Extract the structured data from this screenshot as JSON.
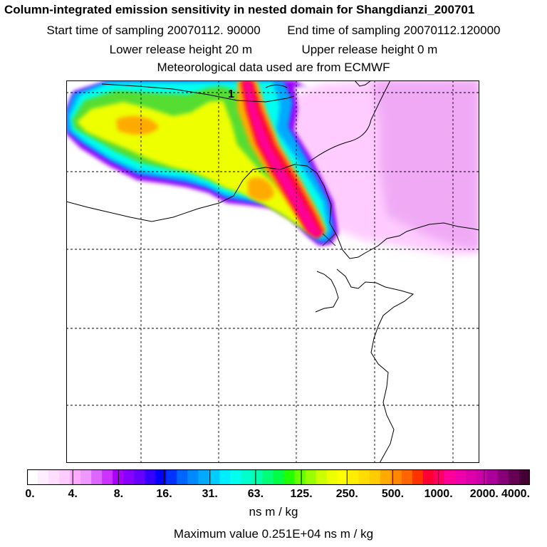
{
  "header": {
    "title": "Column-integrated emission sensitivity in nested domain for Shangdianzi_200701",
    "start_label": "Start time of sampling 20070112. 90000",
    "end_label": "End time of sampling 20070112.120000",
    "lower_label": "Lower release height   20 m",
    "upper_label": "Upper release height    0 m",
    "met_label": "Meteorological data used are from ECMWF"
  },
  "map": {
    "marker_label": "1",
    "plume_colors": {
      "outer": "#9900ff",
      "blue": "#00aaff",
      "cyan": "#00ffee",
      "green": "#55dd33",
      "yellow": "#eeff00",
      "orange": "#ffaa00",
      "red": "#ff1133",
      "magenta": "#ff0099",
      "pale": "#ffccff",
      "light_pink": "#f0aaf5"
    }
  },
  "colorbar": {
    "tick_labels": [
      "0.",
      "4.",
      "8.",
      "16.",
      "31.",
      "63.",
      "125.",
      "250.",
      "500.",
      "1000.",
      "2000.",
      "4000."
    ],
    "colors": [
      "#ffffff",
      "#ffeeff",
      "#ffddff",
      "#ffccff",
      "#ffaaff",
      "#ee99ff",
      "#dd66ff",
      "#cc33ff",
      "#aa00ff",
      "#8800ff",
      "#6600ff",
      "#3300ff",
      "#0000ff",
      "#0033ff",
      "#0066ff",
      "#0088ff",
      "#00aaff",
      "#00ccff",
      "#00eeff",
      "#00ffee",
      "#00ffcc",
      "#00ffaa",
      "#00ff77",
      "#00ff44",
      "#22ff00",
      "#66ff00",
      "#99ff00",
      "#ccff00",
      "#eeff00",
      "#ffff00",
      "#ffee00",
      "#ffdd00",
      "#ffcc00",
      "#ffaa00",
      "#ff8800",
      "#ff6600",
      "#ff3300",
      "#ff0033",
      "#ff0066",
      "#ff0099",
      "#ee00aa",
      "#dd00aa",
      "#cc00aa",
      "#aa0099",
      "#880077",
      "#660055",
      "#440033"
    ],
    "unit_label": "ns m / kg"
  },
  "footer": {
    "max_label": "Maximum value  0.251E+04 ns m / kg"
  }
}
